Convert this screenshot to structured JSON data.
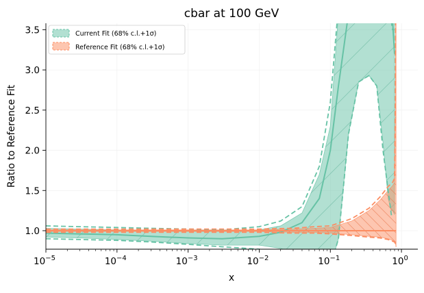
{
  "chart_data": {
    "type": "area",
    "title": "cbar at 100 GeV",
    "xlabel": "x",
    "ylabel": "Ratio to Reference Fit",
    "xscale": "log",
    "xlim": [
      1e-05,
      1.7
    ],
    "ylim": [
      0.77,
      3.58
    ],
    "grid": true,
    "legend_position": "top-left",
    "x_ticks": [
      {
        "value": 1e-05,
        "base": "10",
        "exp": "−5"
      },
      {
        "value": 0.0001,
        "base": "10",
        "exp": "−4"
      },
      {
        "value": 0.001,
        "base": "10",
        "exp": "−3"
      },
      {
        "value": 0.01,
        "base": "10",
        "exp": "−2"
      },
      {
        "value": 0.1,
        "base": "10",
        "exp": "−1"
      },
      {
        "value": 1,
        "base": "10",
        "exp": "0"
      }
    ],
    "y_ticks": [
      {
        "value": 1.0,
        "label": "1.0"
      },
      {
        "value": 1.5,
        "label": "1.5"
      },
      {
        "value": 2.0,
        "label": "2.0"
      },
      {
        "value": 2.5,
        "label": "2.5"
      },
      {
        "value": 3.0,
        "label": "3.0"
      },
      {
        "value": 3.5,
        "label": "3.5"
      }
    ],
    "series": [
      {
        "name": "Current Fit (68% c.l.+1σ)",
        "color": "#66c2a5",
        "x": [
          1e-05,
          3e-05,
          0.0001,
          0.0003,
          0.001,
          0.003,
          0.01,
          0.02,
          0.04,
          0.07,
          0.1,
          0.13,
          0.18,
          0.25,
          0.35,
          0.45,
          0.55,
          0.65,
          0.72,
          0.75,
          0.8
        ],
        "central": [
          0.97,
          0.96,
          0.95,
          0.93,
          0.91,
          0.9,
          0.93,
          0.98,
          1.1,
          1.4,
          2.0,
          2.8,
          3.7,
          4.5,
          4.8,
          4.85,
          4.8,
          4.5,
          4.0,
          3.6,
          3.2
        ],
        "band_upper": [
          1.03,
          1.02,
          1.01,
          1.0,
          0.99,
          0.99,
          1.01,
          1.06,
          1.22,
          1.7,
          2.3,
          3.7,
          4.5,
          5.0,
          5.1,
          5.1,
          5.1,
          5.0,
          4.9,
          4.8,
          4.6
        ],
        "band_lower": [
          0.92,
          0.91,
          0.89,
          0.87,
          0.84,
          0.82,
          0.82,
          0.78,
          0.7,
          0.62,
          0.55,
          0.9,
          2.2,
          2.85,
          2.93,
          2.8,
          2.1,
          1.4,
          1.25,
          1.25,
          1.2
        ],
        "dashed_upper": [
          1.06,
          1.05,
          1.04,
          1.03,
          1.02,
          1.01,
          1.05,
          1.12,
          1.3,
          1.8,
          2.6,
          3.8,
          4.6,
          5.1,
          5.2,
          5.2,
          5.2,
          5.1,
          3.6,
          3.5,
          3.5
        ],
        "dashed_lower": [
          0.9,
          0.89,
          0.88,
          0.86,
          0.83,
          0.8,
          0.77,
          0.72,
          0.66,
          0.6,
          0.55,
          0.9,
          2.2,
          2.85,
          2.93,
          2.8,
          2.0,
          1.5,
          1.2,
          1.2,
          1.2
        ]
      },
      {
        "name": "Reference Fit (68% c.l.+1σ)",
        "color": "#fc8d62",
        "x": [
          1e-05,
          0.0001,
          0.001,
          0.01,
          0.03,
          0.06,
          0.1,
          0.2,
          0.35,
          0.5,
          0.65,
          0.75,
          0.8,
          0.82,
          0.84
        ],
        "central": [
          1,
          1,
          1,
          1,
          1,
          1,
          1,
          1,
          1,
          1,
          1,
          1,
          1,
          1,
          1
        ],
        "band_upper": [
          1.01,
          1.01,
          1.01,
          1.01,
          1.02,
          1.03,
          1.04,
          1.12,
          1.25,
          1.38,
          1.5,
          1.56,
          1.6,
          2.5,
          5.0
        ],
        "band_lower": [
          0.99,
          0.99,
          0.99,
          0.99,
          0.98,
          0.98,
          0.97,
          0.95,
          0.93,
          0.92,
          0.9,
          0.88,
          0.87,
          0.85,
          0.8
        ],
        "dashed_upper": [
          1.02,
          1.02,
          1.02,
          1.02,
          1.03,
          1.05,
          1.06,
          1.15,
          1.28,
          1.42,
          1.55,
          1.6,
          1.65,
          2.6,
          5.0
        ],
        "dashed_lower": [
          0.98,
          0.98,
          0.98,
          0.98,
          0.97,
          0.97,
          0.96,
          0.94,
          0.92,
          0.91,
          0.89,
          0.87,
          0.86,
          0.84,
          0.8
        ]
      }
    ]
  }
}
